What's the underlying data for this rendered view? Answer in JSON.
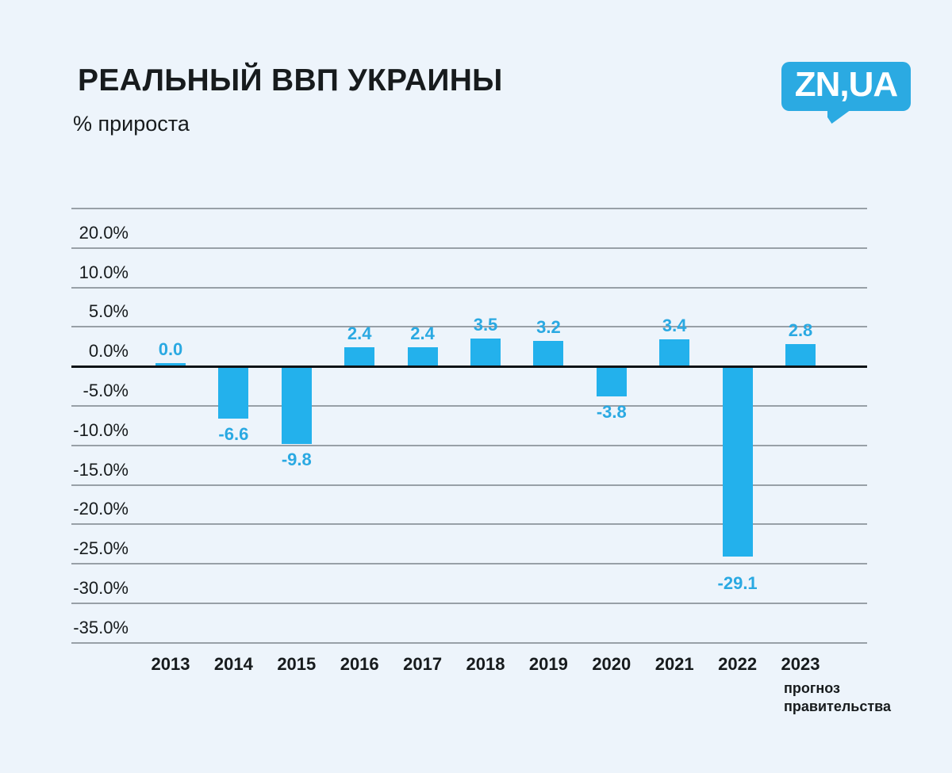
{
  "header": {
    "title": "РЕАЛЬНЫЙ ВВП УКРАИНЫ",
    "subtitle": "% прироста"
  },
  "logo": {
    "text": "ZN,UA"
  },
  "chart_data": {
    "type": "bar",
    "title": "РЕАЛЬНЫЙ ВВП УКРАИНЫ",
    "ylabel": "% прироста",
    "categories": [
      "2013",
      "2014",
      "2015",
      "2016",
      "2017",
      "2018",
      "2019",
      "2020",
      "2021",
      "2022",
      "2023"
    ],
    "values": [
      0.0,
      -6.6,
      -9.8,
      2.4,
      2.4,
      3.5,
      3.2,
      -3.8,
      3.4,
      -29.1,
      2.8
    ],
    "bar_labels": [
      "0.0",
      "-6.6",
      "-9.8",
      "2.4",
      "2.4",
      "3.5",
      "3.2",
      "-3.8",
      "3.4",
      "-29.1",
      "2.8"
    ],
    "y_tick_labels": [
      "20.0%",
      "10.0%",
      "5.0%",
      "0.0%",
      "-5.0%",
      "-10.0%",
      "-15.0%",
      "-20.0%",
      "-25.0%",
      "-30.0%",
      "-35.0%"
    ],
    "x_note": {
      "line1": "прогноз",
      "line2": "правительства"
    },
    "grid": true,
    "legend": false,
    "colors": {
      "background": "#edf4fb",
      "bar": "#23b1ec",
      "value_label": "#2aa9e2",
      "gridline": "#98a0a7",
      "zero_line": "#0e1316",
      "text": "#171b1d",
      "logo_bg": "#2baae2",
      "logo_text": "#ffffff"
    }
  }
}
